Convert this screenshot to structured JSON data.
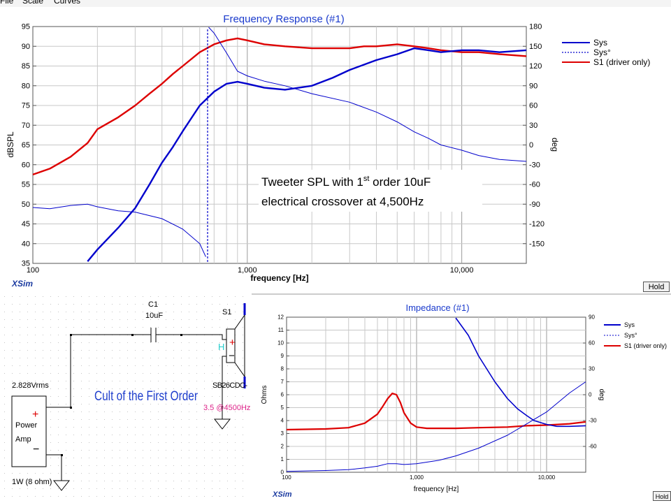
{
  "menu": [
    "File",
    "Scale",
    "Curves"
  ],
  "freq_chart": {
    "title": "Frequency Response (#1)",
    "xlabel": "frequency [Hz]",
    "ylabel_left": "dBSPL",
    "ylabel_right": "deg",
    "x_ticks": [
      "100",
      "1,000",
      "10,000"
    ],
    "y_left_ticks": [
      "95",
      "90",
      "85",
      "80",
      "75",
      "70",
      "65",
      "60",
      "55",
      "50",
      "45",
      "40",
      "35"
    ],
    "y_right_ticks": [
      "180",
      "150",
      "120",
      "90",
      "60",
      "30",
      "0",
      "-30",
      "-60",
      "-90",
      "-120",
      "-150"
    ],
    "legend": [
      {
        "label": "Sys",
        "color": "#0000cc",
        "style": "solid"
      },
      {
        "label": "Sys°",
        "color": "#0000cc",
        "style": "dotted"
      },
      {
        "label": "S1 (driver only)",
        "color": "#dd0000",
        "style": "solid"
      }
    ],
    "annotation": [
      "Tweeter SPL with 1",
      "st",
      " order 10uF",
      "electrical crossover at 4,500Hz"
    ],
    "brand": "XSim",
    "hold": "Hold"
  },
  "chart_data": [
    {
      "type": "line",
      "title": "Frequency Response (#1)",
      "xlabel": "frequency [Hz]",
      "ylabel": "dBSPL",
      "y2label": "deg",
      "xscale": "log",
      "xlim": [
        100,
        20000
      ],
      "ylim": [
        35,
        95
      ],
      "y2lim": [
        -180,
        180
      ],
      "grid": true,
      "legend_position": "right",
      "series": [
        {
          "name": "S1 (driver only)",
          "axis": "left",
          "color": "#dd0000",
          "x": [
            100,
            120,
            150,
            180,
            200,
            250,
            300,
            350,
            400,
            450,
            500,
            600,
            700,
            800,
            900,
            1000,
            1200,
            1500,
            2000,
            2500,
            3000,
            3500,
            4000,
            5000,
            6000,
            7000,
            8000,
            10000,
            12000,
            15000,
            20000
          ],
          "y": [
            57.5,
            59,
            62,
            65.5,
            69,
            72,
            75,
            78,
            80.5,
            83,
            85,
            88.5,
            90.5,
            91.5,
            92,
            91.5,
            90.5,
            90,
            89.5,
            89.5,
            89.5,
            90,
            90,
            90.5,
            90,
            89.5,
            89,
            88.5,
            88.5,
            88,
            87.5
          ]
        },
        {
          "name": "Sys",
          "axis": "left",
          "color": "#0000cc",
          "x": [
            180,
            200,
            250,
            300,
            350,
            400,
            450,
            500,
            600,
            700,
            800,
            900,
            1000,
            1200,
            1500,
            2000,
            2500,
            3000,
            4000,
            5000,
            6000,
            7000,
            8000,
            10000,
            12000,
            15000,
            20000
          ],
          "y": [
            35.5,
            38.5,
            44,
            49,
            55,
            60.5,
            64.5,
            68.5,
            75,
            78.5,
            80.5,
            81,
            80.5,
            79.5,
            79,
            80,
            82,
            84,
            86.5,
            88,
            89.5,
            89,
            88.5,
            89,
            89,
            88.5,
            89
          ]
        },
        {
          "name": "Sys°",
          "axis": "right",
          "color": "#0000cc",
          "x": [
            100,
            120,
            150,
            180,
            200,
            250,
            300,
            400,
            500,
            600,
            640,
            660,
            700,
            800,
            900,
            1000,
            1200,
            1500,
            2000,
            3000,
            4000,
            5000,
            6000,
            7000,
            8000,
            10000,
            12000,
            15000,
            20000
          ],
          "y": [
            -95,
            -97,
            -92,
            -90,
            -94,
            -100,
            -102,
            -112,
            -128,
            -150,
            -170,
            180,
            170,
            140,
            112,
            105,
            97,
            90,
            78,
            65,
            50,
            35,
            20,
            10,
            0,
            -8,
            -16,
            -22,
            -25
          ]
        }
      ]
    },
    {
      "type": "line",
      "title": "Impedance (#1)",
      "xlabel": "frequency [Hz]",
      "ylabel": "Ohms",
      "y2label": "deg",
      "xscale": "log",
      "xlim": [
        100,
        20000
      ],
      "ylim": [
        0,
        12
      ],
      "y2lim": [
        -90,
        90
      ],
      "grid": true,
      "legend_position": "right",
      "series": [
        {
          "name": "S1 (driver only)",
          "axis": "left",
          "color": "#dd0000",
          "x": [
            100,
            200,
            300,
            400,
            500,
            550,
            600,
            650,
            700,
            750,
            800,
            900,
            1000,
            1200,
            1500,
            2000,
            3000,
            5000,
            7000,
            10000,
            15000,
            20000
          ],
          "y": [
            3.3,
            3.35,
            3.45,
            3.8,
            4.5,
            5.1,
            5.7,
            6.1,
            6.0,
            5.4,
            4.6,
            3.8,
            3.5,
            3.4,
            3.4,
            3.4,
            3.45,
            3.5,
            3.6,
            3.65,
            3.75,
            3.9
          ]
        },
        {
          "name": "Sys",
          "axis": "left",
          "color": "#0000cc",
          "x": [
            2000,
            2500,
            3000,
            4000,
            5000,
            6000,
            7000,
            8000,
            10000,
            12000,
            15000,
            20000
          ],
          "y": [
            12,
            10.6,
            9.0,
            7.0,
            5.7,
            4.9,
            4.4,
            4.0,
            3.7,
            3.55,
            3.55,
            3.6
          ]
        },
        {
          "name": "Sys°",
          "axis": "right",
          "color": "#0000cc",
          "x": [
            100,
            200,
            300,
            400,
            500,
            600,
            700,
            800,
            1000,
            1500,
            2000,
            3000,
            5000,
            7000,
            10000,
            15000,
            20000
          ],
          "y": [
            -89,
            -88,
            -87,
            -85,
            -83,
            -80,
            -80,
            -81,
            -80,
            -76,
            -71,
            -62,
            -47,
            -34,
            -20,
            2,
            15
          ]
        }
      ]
    }
  ],
  "imp_chart": {
    "title": "Impedance (#1)",
    "xlabel": "frequency [Hz]",
    "ylabel_left": "Ohms",
    "ylabel_right": "deg",
    "x_ticks": [
      "100",
      "1,000",
      "10,000"
    ],
    "y_left_ticks": [
      "12",
      "11",
      "10",
      "9",
      "8",
      "7",
      "6",
      "5",
      "4",
      "3",
      "2",
      "1",
      "0"
    ],
    "y_right_ticks": [
      "90",
      "60",
      "30",
      "0",
      "-30",
      "-60"
    ],
    "legend": [
      {
        "label": "Sys",
        "color": "#0000cc",
        "style": "solid"
      },
      {
        "label": "Sys°",
        "color": "#0000cc",
        "style": "dotted"
      },
      {
        "label": "S1 (driver only)",
        "color": "#dd0000",
        "style": "solid"
      }
    ],
    "brand": "XSim",
    "hold": "Hold"
  },
  "schematic": {
    "cap_name": "C1",
    "cap_value": "10uF",
    "speaker_name": "S1",
    "speaker_model": "SB26CDC-",
    "speaker_note": "3.5 @4500Hz",
    "source_voltage": "2.828Vrms",
    "amp_label_1": "Power",
    "amp_label_2": "Amp",
    "amp_plus": "+",
    "amp_minus": "−",
    "spk_plus": "+",
    "spk_minus": "−",
    "h_mark": "H",
    "power_note": "1W (8 ohm)",
    "title": "Cult of the First Order"
  }
}
